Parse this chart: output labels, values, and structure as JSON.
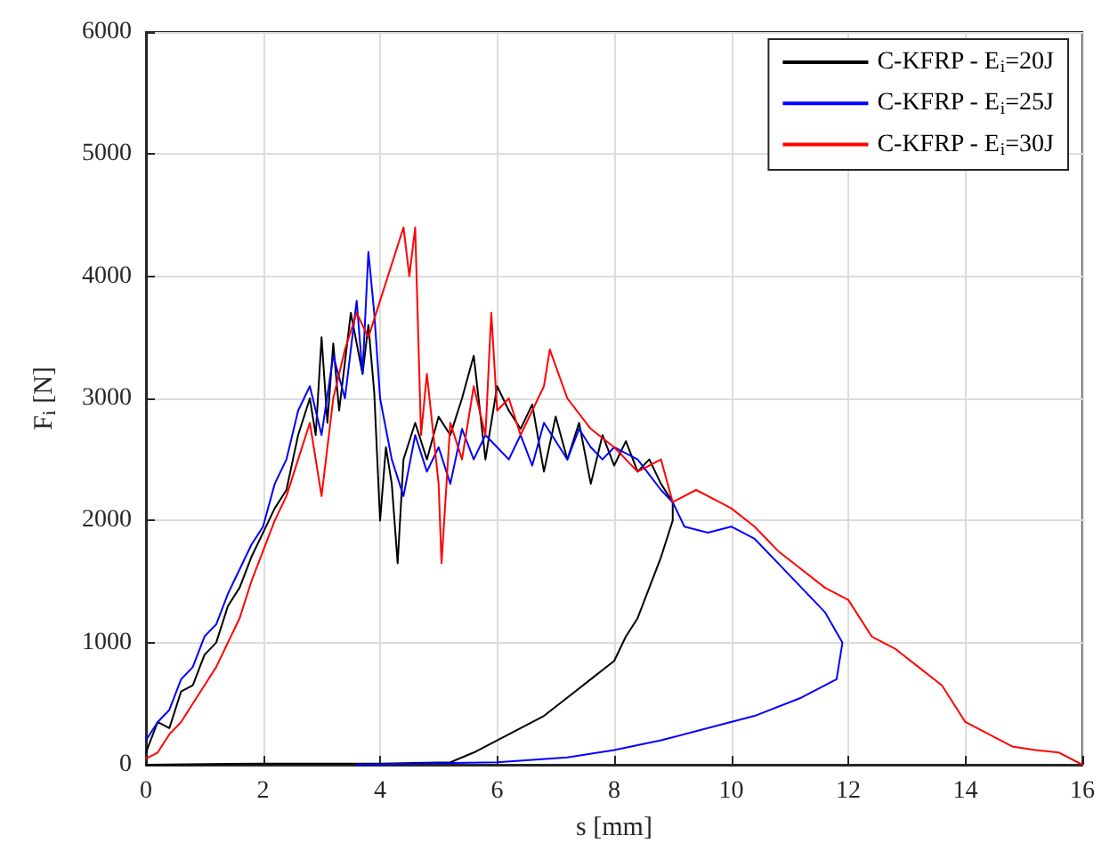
{
  "chart_data": {
    "type": "line",
    "xlabel": "s [mm]",
    "ylabel": "F$_{i}$ [N]",
    "xlim": [
      0,
      16
    ],
    "xticks": [
      0,
      2,
      4,
      6,
      8,
      10,
      12,
      14,
      16
    ],
    "ylim": [
      0,
      6000
    ],
    "yticks": [
      0,
      1000,
      2000,
      3000,
      4000,
      5000,
      6000
    ],
    "grid": true,
    "legend": "top right",
    "marker": "none",
    "line_style": "solid",
    "series": [
      {
        "name": "C-KFRP - E$_{i}$=20J",
        "color": "#000000",
        "x": [
          0,
          0.2,
          0.4,
          0.6,
          0.8,
          1.0,
          1.2,
          1.4,
          1.6,
          1.8,
          2.0,
          2.2,
          2.4,
          2.6,
          2.8,
          2.9,
          3.0,
          3.1,
          3.2,
          3.3,
          3.4,
          3.5,
          3.7,
          3.8,
          3.9,
          4.0,
          4.1,
          4.2,
          4.3,
          4.4,
          4.6,
          4.8,
          5.0,
          5.2,
          5.4,
          5.6,
          5.8,
          6.0,
          6.2,
          6.4,
          6.6,
          6.8,
          7.0,
          7.2,
          7.4,
          7.6,
          7.8,
          8.0,
          8.2,
          8.4,
          8.6,
          8.8,
          9.0,
          9.0,
          8.8,
          8.6,
          8.4,
          8.2,
          8.0,
          7.6,
          7.2,
          6.8,
          6.4,
          6.0,
          5.6,
          5.2,
          4.0,
          2.0,
          0
        ],
        "values": [
          100,
          350,
          300,
          600,
          650,
          900,
          1000,
          1300,
          1450,
          1700,
          1900,
          2100,
          2250,
          2700,
          3000,
          2700,
          3500,
          2800,
          3450,
          2900,
          3300,
          3700,
          3200,
          3600,
          3050,
          2000,
          2600,
          2300,
          1650,
          2500,
          2800,
          2500,
          2850,
          2700,
          3000,
          3350,
          2500,
          3100,
          2900,
          2750,
          2950,
          2400,
          2850,
          2500,
          2800,
          2300,
          2700,
          2450,
          2650,
          2400,
          2500,
          2300,
          2150,
          2000,
          1700,
          1450,
          1200,
          1050,
          850,
          700,
          550,
          400,
          300,
          200,
          100,
          20,
          10,
          10,
          0
        ]
      },
      {
        "name": "C-KFRP - E$_{i}$=25J",
        "color": "#0000ff",
        "x": [
          0,
          0.2,
          0.4,
          0.6,
          0.8,
          1.0,
          1.2,
          1.4,
          1.6,
          1.8,
          2.0,
          2.2,
          2.4,
          2.6,
          2.8,
          3.0,
          3.2,
          3.4,
          3.6,
          3.7,
          3.8,
          3.9,
          4.0,
          4.2,
          4.4,
          4.6,
          4.8,
          5.0,
          5.2,
          5.4,
          5.6,
          5.8,
          6.0,
          6.2,
          6.4,
          6.6,
          6.8,
          7.0,
          7.2,
          7.4,
          7.6,
          7.8,
          8.0,
          8.4,
          8.8,
          9.0,
          9.2,
          9.6,
          10.0,
          10.4,
          10.8,
          11.2,
          11.6,
          11.9,
          11.8,
          11.2,
          10.4,
          9.6,
          8.8,
          8.0,
          7.2,
          6.0,
          4.5,
          3.6
        ],
        "values": [
          200,
          350,
          450,
          700,
          800,
          1050,
          1150,
          1400,
          1600,
          1800,
          1950,
          2300,
          2500,
          2900,
          3100,
          2700,
          3350,
          3000,
          3800,
          3200,
          4200,
          3700,
          3000,
          2500,
          2200,
          2700,
          2400,
          2600,
          2300,
          2750,
          2500,
          2700,
          2600,
          2500,
          2700,
          2450,
          2800,
          2650,
          2500,
          2750,
          2600,
          2500,
          2600,
          2500,
          2250,
          2150,
          1950,
          1900,
          1950,
          1850,
          1650,
          1450,
          1250,
          1000,
          700,
          550,
          400,
          300,
          200,
          120,
          60,
          20,
          10,
          0
        ]
      },
      {
        "name": "C-KFRP - E$_{i}$=30J",
        "color": "#ff0000",
        "x": [
          0,
          0.2,
          0.4,
          0.6,
          0.8,
          1.0,
          1.2,
          1.4,
          1.6,
          1.8,
          2.0,
          2.2,
          2.4,
          2.6,
          2.8,
          3.0,
          3.2,
          3.4,
          3.6,
          3.8,
          4.0,
          4.2,
          4.4,
          4.5,
          4.6,
          4.7,
          4.8,
          5.0,
          5.05,
          5.2,
          5.4,
          5.6,
          5.8,
          5.9,
          6.0,
          6.2,
          6.4,
          6.6,
          6.8,
          6.9,
          7.2,
          7.6,
          8.0,
          8.4,
          8.8,
          9.0,
          9.4,
          9.8,
          10.0,
          10.4,
          10.8,
          11.2,
          11.6,
          12.0,
          12.4,
          12.8,
          13.2,
          13.6,
          14.0,
          14.4,
          14.8,
          15.2,
          15.6,
          16.0
        ],
        "values": [
          50,
          100,
          250,
          350,
          500,
          650,
          800,
          1000,
          1200,
          1500,
          1750,
          2000,
          2200,
          2500,
          2800,
          2200,
          3000,
          3400,
          3700,
          3500,
          3800,
          4100,
          4400,
          4000,
          4400,
          2700,
          3200,
          2300,
          1650,
          2800,
          2500,
          3100,
          2700,
          3700,
          2900,
          3000,
          2700,
          2900,
          3100,
          3400,
          3000,
          2750,
          2600,
          2400,
          2500,
          2150,
          2250,
          2150,
          2100,
          1950,
          1750,
          1600,
          1450,
          1350,
          1050,
          950,
          800,
          650,
          350,
          250,
          150,
          120,
          100,
          0
        ]
      }
    ]
  }
}
